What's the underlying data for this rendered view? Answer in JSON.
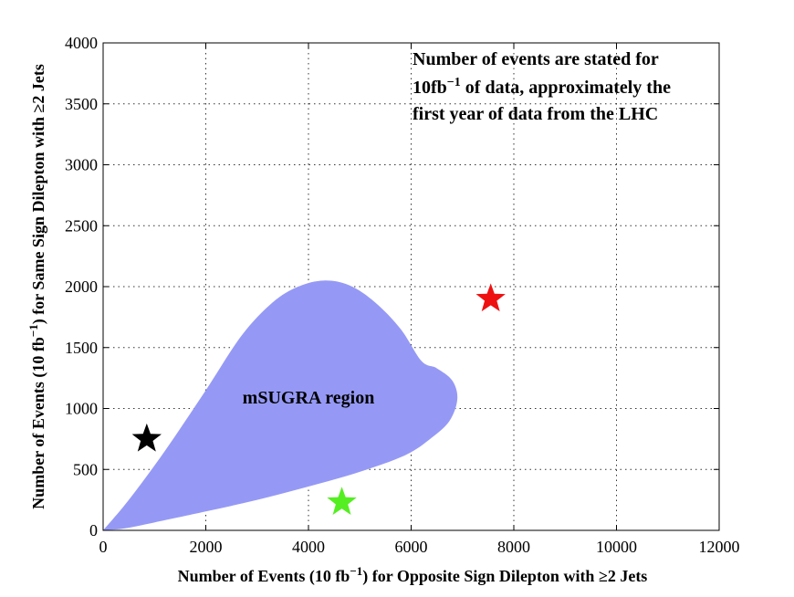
{
  "chart_data": {
    "type": "scatter",
    "xlabel": "Number of Events (10 fb",
    "xlabel_sup": "−1",
    "xlabel_rest": ") for Opposite Sign Dilepton with  ≥2 Jets",
    "ylabel": "Number of Events (10 fb",
    "ylabel_sup": "−1",
    "ylabel_rest": ") for Same Sign Dilepton with  ≥2 Jets",
    "xlim": [
      0,
      12000
    ],
    "ylim": [
      0,
      4000
    ],
    "xticks": [
      0,
      2000,
      4000,
      6000,
      8000,
      10000,
      12000
    ],
    "yticks": [
      0,
      500,
      1000,
      1500,
      2000,
      2500,
      3000,
      3500,
      4000
    ],
    "grid": true,
    "annotation": {
      "line1": "Number of events are stated for",
      "line2_a": "10fb",
      "line2_sup": "−1",
      "line2_b": " of data, approximately the",
      "line3": "first year of data from the LHC"
    },
    "region": {
      "label": "mSUGRA region",
      "color": "#9599f5",
      "label_at": [
        4000,
        1040
      ],
      "outline": [
        [
          0,
          0
        ],
        [
          500,
          250
        ],
        [
          1200,
          650
        ],
        [
          2000,
          1150
        ],
        [
          2700,
          1600
        ],
        [
          3300,
          1870
        ],
        [
          3800,
          2000
        ],
        [
          4300,
          2050
        ],
        [
          4800,
          2010
        ],
        [
          5300,
          1870
        ],
        [
          5800,
          1650
        ],
        [
          6200,
          1390
        ],
        [
          6500,
          1330
        ],
        [
          6800,
          1230
        ],
        [
          6900,
          1080
        ],
        [
          6750,
          900
        ],
        [
          6400,
          760
        ],
        [
          5900,
          620
        ],
        [
          5000,
          480
        ],
        [
          4000,
          360
        ],
        [
          3000,
          250
        ],
        [
          2000,
          155
        ],
        [
          1000,
          65
        ],
        [
          400,
          15
        ],
        [
          0,
          0
        ]
      ]
    },
    "points": [
      {
        "name": "black-star",
        "x": 850,
        "y": 750,
        "color": "#000000"
      },
      {
        "name": "green-star",
        "x": 4650,
        "y": 230,
        "color": "#55ee22"
      },
      {
        "name": "red-star",
        "x": 7550,
        "y": 1900,
        "color": "#ee1111"
      }
    ]
  }
}
